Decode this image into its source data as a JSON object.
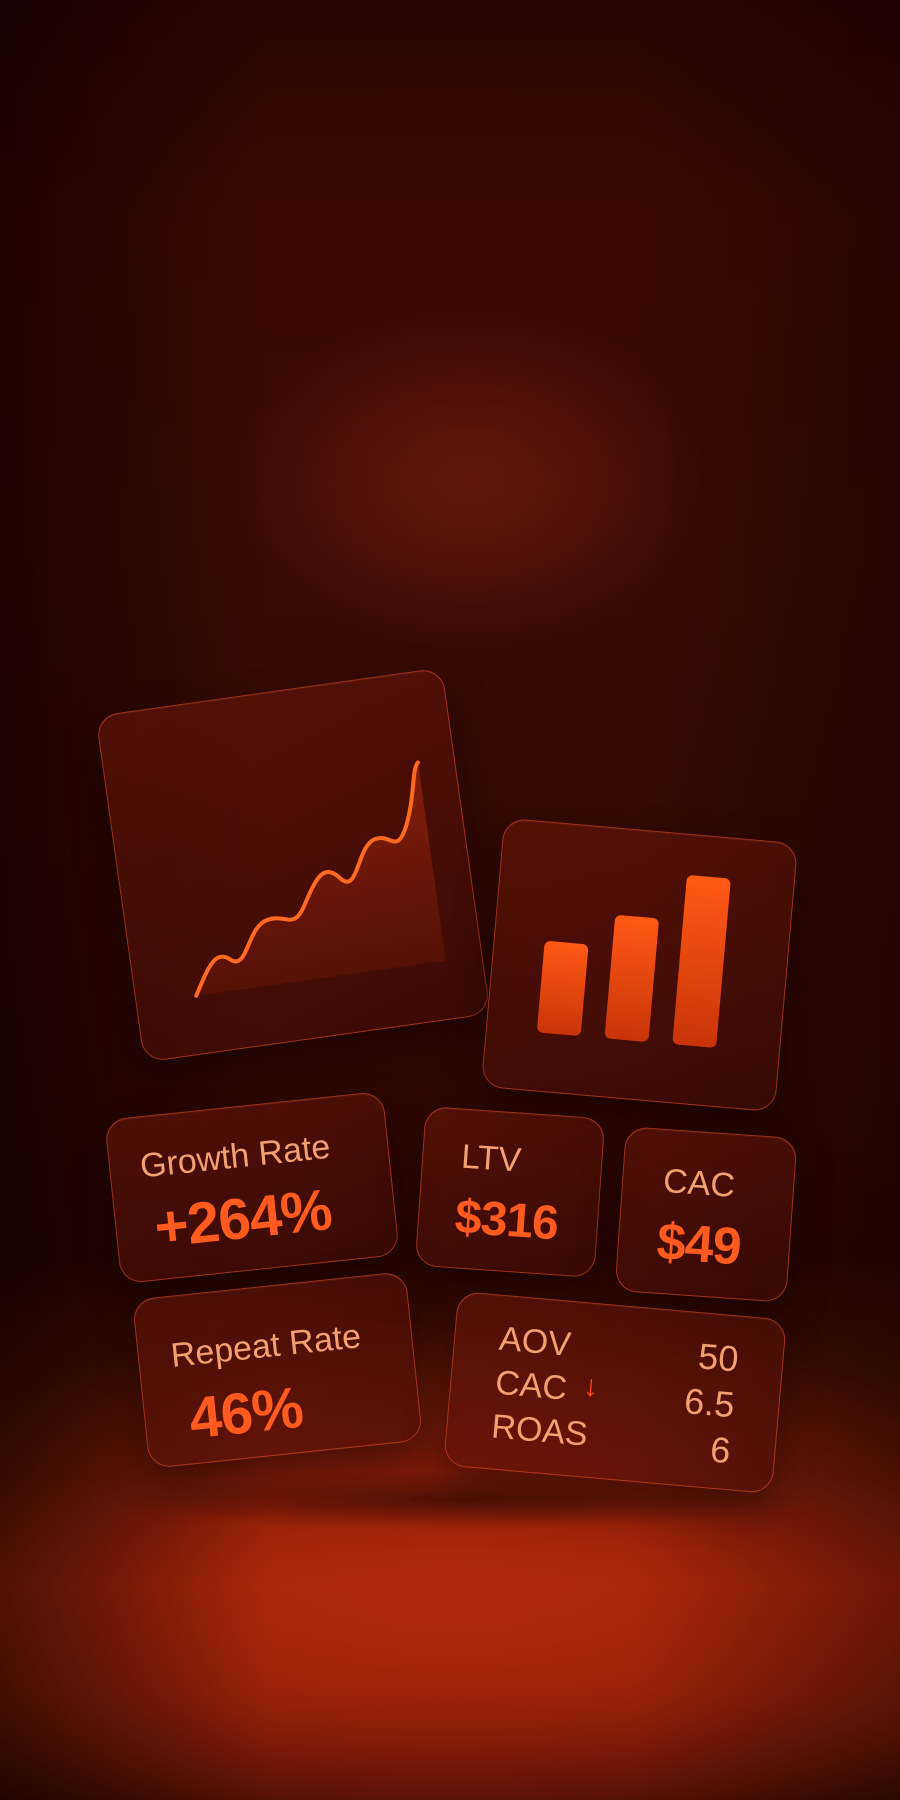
{
  "cards": {
    "growth": {
      "label": "Growth Rate",
      "value": "+264%"
    },
    "ltv": {
      "label": "LTV",
      "value": "$316"
    },
    "cac": {
      "label": "CAC",
      "value": "$49"
    },
    "repeat": {
      "label": "Repeat Rate",
      "value": "46%"
    },
    "metrics": {
      "rows": [
        {
          "label": "AOV",
          "value": "50"
        },
        {
          "label": "CAC",
          "value": "6.5",
          "arrow": "↓"
        },
        {
          "label": "ROAS",
          "value": "6"
        }
      ]
    }
  },
  "colors": {
    "accent": "#ff5a1f",
    "label": "#f2a070",
    "card_border": "#e65028",
    "background": "#3a0a06"
  },
  "icons": {
    "line_chart": "line-chart-icon",
    "bar_chart": "bar-chart-icon",
    "down_arrow": "down-arrow-icon"
  }
}
